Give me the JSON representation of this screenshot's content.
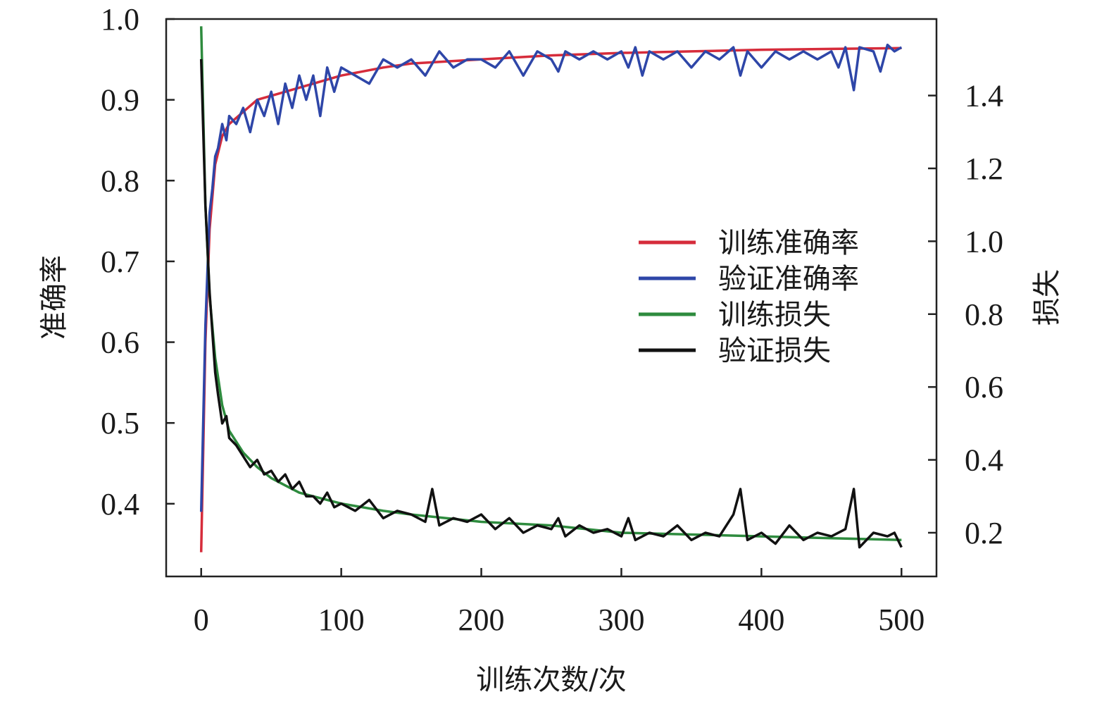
{
  "chart_data": {
    "type": "line",
    "xlabel": "训练次数/次",
    "ylabel_left": "准确率",
    "ylabel_right": "损失",
    "xlim": [
      -25,
      525
    ],
    "ylim_left": [
      0.31,
      1.0
    ],
    "ylim_right": [
      0.08,
      1.61
    ],
    "xticks": [
      0,
      100,
      200,
      300,
      400,
      500
    ],
    "xtick_labels": [
      "0",
      "100",
      "200",
      "300",
      "400",
      "500"
    ],
    "yticks_left": [
      0.4,
      0.5,
      0.6,
      0.7,
      0.8,
      0.9,
      1.0
    ],
    "ytick_labels_left": [
      "0.4",
      "0.5",
      "0.6",
      "0.7",
      "0.8",
      "0.9",
      "1.0"
    ],
    "yticks_right": [
      0.2,
      0.4,
      0.6,
      0.8,
      1.0,
      1.2,
      1.4
    ],
    "ytick_labels_right": [
      "0.2",
      "0.4",
      "0.6",
      "0.8",
      "1.0",
      "1.2",
      "1.4"
    ],
    "legend_position": "center-right",
    "grid": false,
    "series": [
      {
        "name": "训练准确率",
        "axis": "left",
        "color": "#d62c3b",
        "x": [
          0,
          3,
          6,
          10,
          15,
          20,
          30,
          40,
          50,
          60,
          80,
          100,
          130,
          150,
          200,
          250,
          300,
          350,
          400,
          450,
          500
        ],
        "values": [
          0.34,
          0.6,
          0.74,
          0.82,
          0.855,
          0.87,
          0.885,
          0.9,
          0.905,
          0.91,
          0.92,
          0.93,
          0.94,
          0.945,
          0.95,
          0.955,
          0.958,
          0.96,
          0.962,
          0.963,
          0.964
        ]
      },
      {
        "name": "验证准确率",
        "axis": "left",
        "color": "#2e46a8",
        "x": [
          0,
          3,
          6,
          8,
          10,
          12,
          15,
          18,
          20,
          25,
          30,
          35,
          40,
          45,
          50,
          55,
          60,
          65,
          70,
          75,
          80,
          85,
          90,
          95,
          100,
          110,
          120,
          130,
          140,
          150,
          160,
          170,
          180,
          190,
          200,
          210,
          220,
          230,
          240,
          250,
          255,
          260,
          270,
          280,
          290,
          300,
          305,
          310,
          315,
          320,
          330,
          340,
          350,
          360,
          370,
          380,
          385,
          390,
          400,
          410,
          420,
          430,
          440,
          450,
          455,
          460,
          466,
          470,
          480,
          485,
          490,
          495,
          500
        ],
        "values": [
          0.39,
          0.62,
          0.76,
          0.79,
          0.83,
          0.84,
          0.87,
          0.85,
          0.88,
          0.87,
          0.89,
          0.86,
          0.9,
          0.88,
          0.91,
          0.87,
          0.92,
          0.89,
          0.93,
          0.9,
          0.93,
          0.88,
          0.94,
          0.91,
          0.94,
          0.93,
          0.92,
          0.95,
          0.94,
          0.95,
          0.93,
          0.96,
          0.94,
          0.95,
          0.95,
          0.94,
          0.96,
          0.93,
          0.96,
          0.95,
          0.935,
          0.96,
          0.95,
          0.96,
          0.95,
          0.96,
          0.94,
          0.965,
          0.93,
          0.96,
          0.95,
          0.96,
          0.94,
          0.96,
          0.95,
          0.965,
          0.93,
          0.96,
          0.94,
          0.96,
          0.95,
          0.96,
          0.95,
          0.96,
          0.94,
          0.965,
          0.912,
          0.965,
          0.96,
          0.935,
          0.968,
          0.96,
          0.965
        ]
      },
      {
        "name": "训练损失",
        "axis": "right",
        "color": "#2e8b3e",
        "x": [
          0,
          3,
          6,
          10,
          15,
          20,
          30,
          40,
          50,
          60,
          70,
          80,
          100,
          130,
          150,
          200,
          250,
          300,
          350,
          400,
          450,
          500
        ],
        "values": [
          1.59,
          1.1,
          0.85,
          0.68,
          0.55,
          0.48,
          0.42,
          0.38,
          0.35,
          0.33,
          0.31,
          0.3,
          0.28,
          0.26,
          0.25,
          0.23,
          0.22,
          0.2,
          0.195,
          0.19,
          0.185,
          0.18
        ]
      },
      {
        "name": "验证损失",
        "axis": "right",
        "color": "#111111",
        "x": [
          0,
          3,
          6,
          8,
          10,
          12,
          15,
          18,
          20,
          25,
          30,
          35,
          40,
          45,
          50,
          55,
          60,
          65,
          70,
          75,
          80,
          85,
          90,
          95,
          100,
          110,
          120,
          130,
          140,
          150,
          160,
          165,
          170,
          180,
          190,
          200,
          210,
          220,
          230,
          240,
          250,
          255,
          260,
          270,
          280,
          290,
          300,
          305,
          310,
          320,
          330,
          340,
          350,
          360,
          370,
          380,
          385,
          390,
          400,
          410,
          420,
          430,
          440,
          450,
          460,
          466,
          470,
          480,
          490,
          495,
          500
        ],
        "values": [
          1.5,
          1.1,
          0.86,
          0.75,
          0.64,
          0.58,
          0.5,
          0.52,
          0.46,
          0.44,
          0.41,
          0.38,
          0.4,
          0.36,
          0.37,
          0.34,
          0.36,
          0.32,
          0.34,
          0.3,
          0.3,
          0.28,
          0.31,
          0.27,
          0.28,
          0.26,
          0.29,
          0.24,
          0.26,
          0.25,
          0.23,
          0.32,
          0.22,
          0.24,
          0.23,
          0.25,
          0.21,
          0.24,
          0.2,
          0.22,
          0.21,
          0.24,
          0.19,
          0.22,
          0.2,
          0.21,
          0.19,
          0.24,
          0.18,
          0.2,
          0.19,
          0.22,
          0.18,
          0.2,
          0.19,
          0.25,
          0.32,
          0.18,
          0.2,
          0.17,
          0.22,
          0.18,
          0.2,
          0.19,
          0.21,
          0.32,
          0.16,
          0.2,
          0.19,
          0.2,
          0.16
        ]
      }
    ]
  }
}
